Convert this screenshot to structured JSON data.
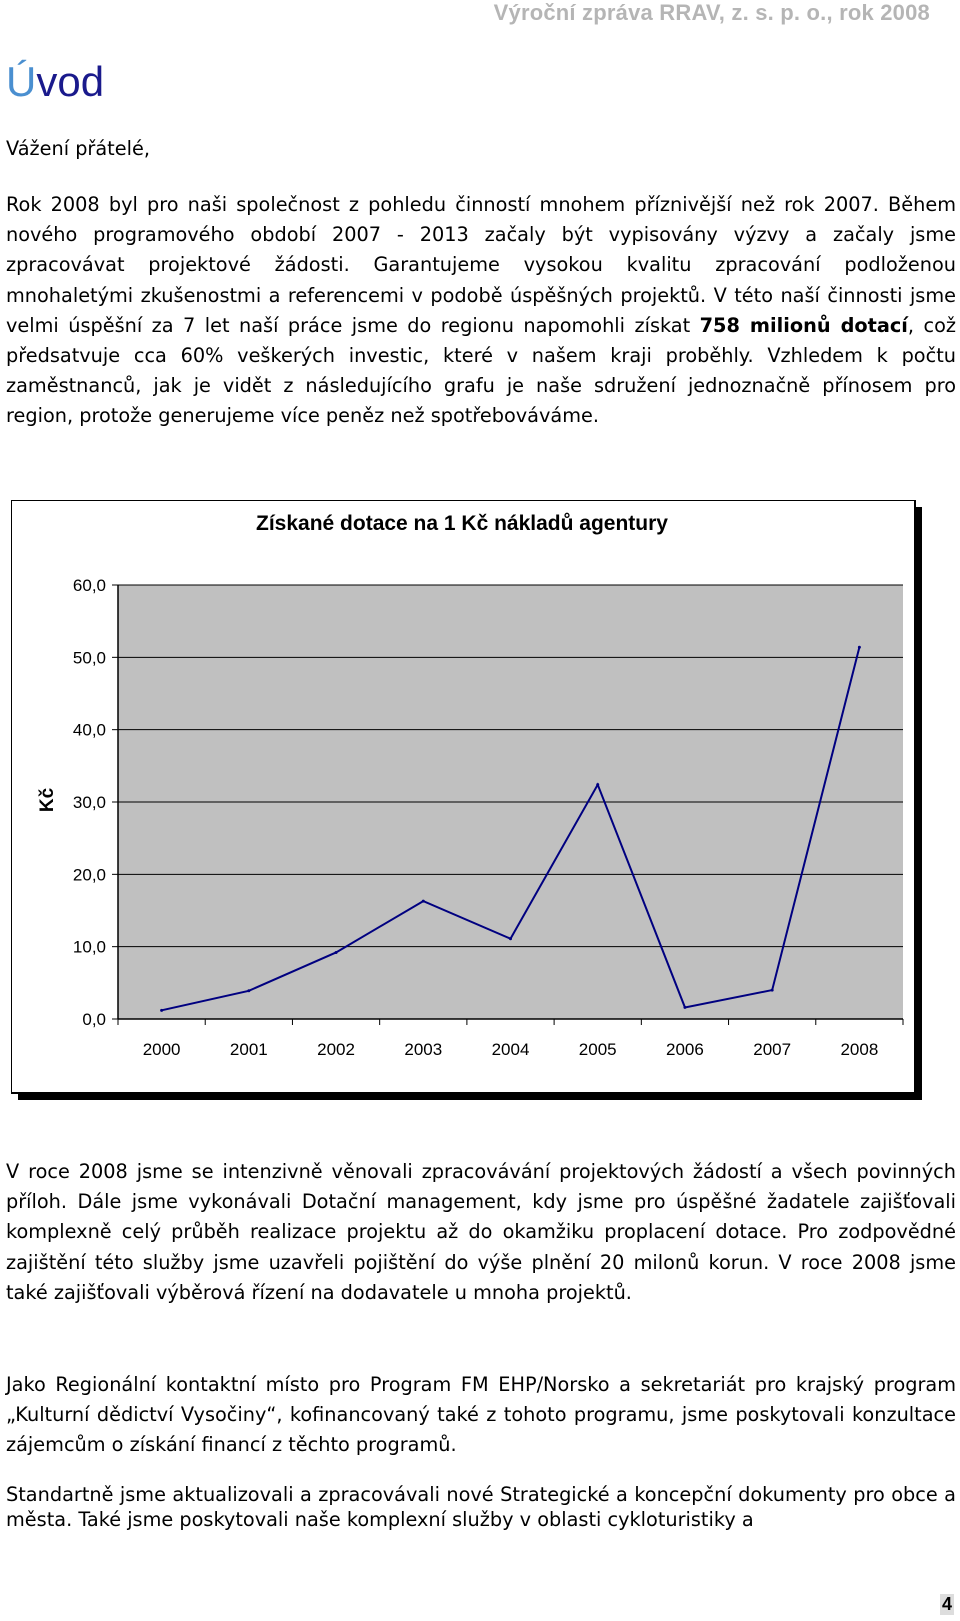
{
  "header": {
    "text": "Výroční zpráva RRAV, z. s. p. o., rok 2008"
  },
  "title": {
    "first_letter": "Ú",
    "rest": "vod"
  },
  "greeting": "Vážení přátelé,",
  "paragraph1": {
    "before_bold": "Rok 2008 byl pro naši společnost z pohledu činností mnohem příznivější než rok 2007. Během nového programového období 2007 - 2013 začaly být vypisovány výzvy a začaly jsme zpracovávat projektové žádosti. Garantujeme vysokou kvalitu zpracování podloženou mnohaletými zkušenostmi a referencemi v podobě úspěšných projektů. V této naší činnosti jsme velmi úspěšní za 7 let naší práce jsme do regionu napomohli získat ",
    "bold": "758 milionů dotací",
    "after_bold": ", což předsatvuje cca 60% veškerých investic, které v našem kraji proběhly. Vzhledem k počtu zaměstnanců, jak je vidět z následujícího grafu je naše sdružení jednoznačně přínosem pro region, protože generujeme více peněz než spotřebováváme."
  },
  "chart_data": {
    "type": "line",
    "title": "Získané dotace na 1 Kč nákladů agentury",
    "xlabel": "",
    "ylabel": "Kč",
    "categories": [
      "2000",
      "2001",
      "2002",
      "2003",
      "2004",
      "2005",
      "2006",
      "2007",
      "2008"
    ],
    "values": [
      1.2,
      3.9,
      9.2,
      16.3,
      11.1,
      32.4,
      1.6,
      4.0,
      51.4
    ],
    "ylim": [
      0,
      60
    ],
    "yticks": [
      "0,0",
      "10,0",
      "20,0",
      "30,0",
      "40,0",
      "50,0",
      "60,0"
    ],
    "grid": true,
    "line_color": "#000080",
    "plot_background": "#c0c0c0"
  },
  "paragraph2": "V roce 2008 jsme se intenzivně věnovali zpracovávání projektových žádostí a všech povinných příloh. Dále jsme vykonávali Dotační management, kdy jsme pro úspěšné žadatele zajišťovali komplexně celý průběh realizace projektu až do okamžiku proplacení dotace. Pro zodpovědné zajištění této služby jsme uzavřeli pojištění do výše plnění 20 milonů korun. V roce 2008 jsme také zajišťovali výběrová řízení na dodavatele u mnoha projektů.",
  "paragraph3": "Jako Regionální kontaktní místo pro Program FM EHP/Norsko a sekretariát pro krajský program „Kulturní dědictví Vysočiny“, kofinancovaný také z tohoto programu, jsme poskytovali konzultace zájemcům o získání financí z těchto programů.",
  "paragraph4": "Standartně jsme aktualizovali a zpracovávali nové Strategické a koncepční dokumenty pro obce a města. Také jsme poskytovali naše komplexní služby v oblasti cykloturistiky a",
  "page_number": "4"
}
